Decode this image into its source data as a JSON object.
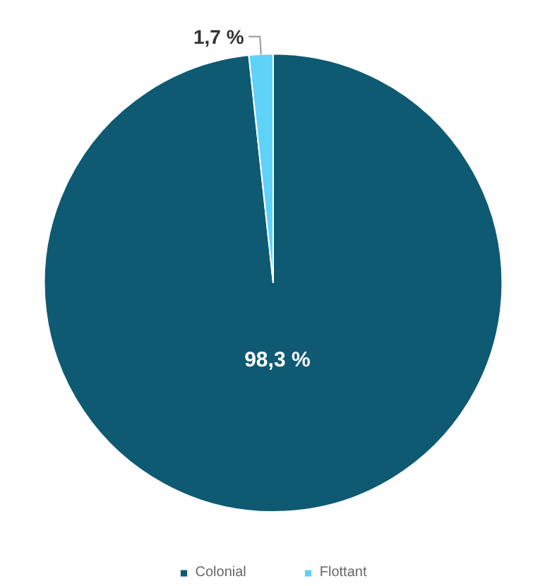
{
  "chart_data": {
    "type": "pie",
    "categories": [
      "Colonial",
      "Flottant"
    ],
    "values": [
      98.3,
      1.7
    ],
    "colors": [
      "#0e5a72",
      "#5fd2f7"
    ],
    "value_labels": [
      "98,3 %",
      "1,7 %"
    ],
    "legend": "bottom"
  }
}
